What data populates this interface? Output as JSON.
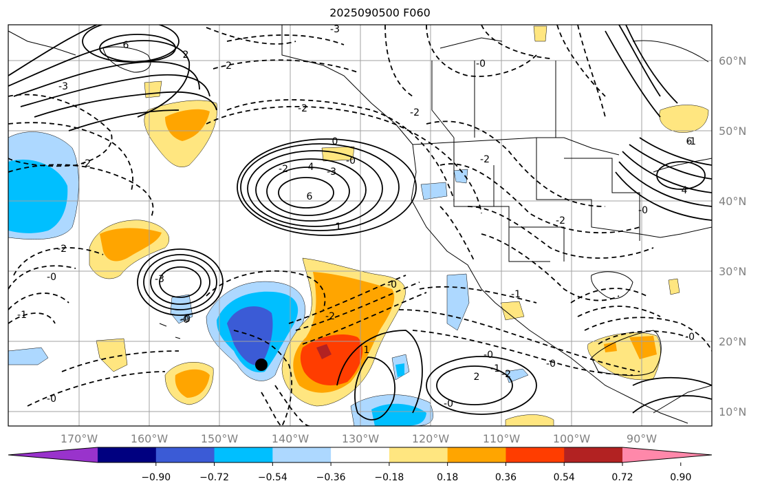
{
  "title": "2025090500 F060",
  "lat_labels": [
    "60°N",
    "50°N",
    "40°N",
    "30°N",
    "20°N",
    "10°N"
  ],
  "lon_labels": [
    "170°W",
    "160°W",
    "150°W",
    "140°W",
    "130°W",
    "120°W",
    "110°W",
    "100°W",
    "90°W"
  ],
  "colorbar": {
    "ticks": [
      "−0.90",
      "−0.72",
      "−0.54",
      "−0.36",
      "−0.18",
      "0.18",
      "0.36",
      "0.54",
      "0.72",
      "0.90"
    ],
    "colors": [
      "#9933cc",
      "#000080",
      "#3b5bd6",
      "#00bfff",
      "#add8ff",
      "#ffffff",
      "#ffe680",
      "#ffa500",
      "#ff3d00",
      "#b22222",
      "#ff88aa"
    ]
  },
  "contour_labels": [
    "-3",
    "6",
    "2",
    "-2",
    "-3",
    "-2",
    "-0",
    "-2",
    "0",
    "4",
    "6",
    "-3",
    "1",
    "-2",
    "-2",
    "-0",
    "-3",
    "-1",
    "-0",
    "-2",
    "1",
    "-0",
    "-1",
    "-2",
    "-0",
    "-0",
    "-2",
    "2",
    "-0",
    "-0",
    "-0",
    "-2",
    "-2",
    "6",
    "4",
    "-0",
    "-0",
    "-1",
    "-0",
    "-1"
  ],
  "marker": "storm-center"
}
